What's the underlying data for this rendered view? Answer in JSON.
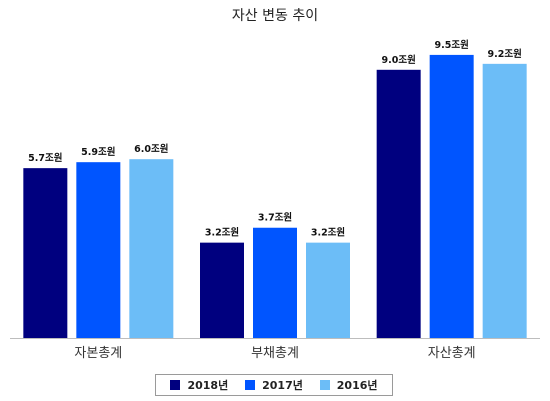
{
  "chart_data": {
    "type": "bar",
    "title": "자산 변동 추이",
    "categories": [
      "자본총계",
      "부채총계",
      "자산총계"
    ],
    "series": [
      {
        "name": "2018년",
        "color": "#00007f",
        "values": [
          5.7,
          3.2,
          9.0
        ],
        "labels": [
          "5.7조원",
          "3.2조원",
          "9.0조원"
        ]
      },
      {
        "name": "2017년",
        "color": "#0055ff",
        "values": [
          5.9,
          3.7,
          9.5
        ],
        "labels": [
          "5.9조원",
          "3.7조원",
          "9.5조원"
        ]
      },
      {
        "name": "2016년",
        "color": "#6cbdf7",
        "values": [
          6.0,
          3.2,
          9.2
        ],
        "labels": [
          "6.0조원",
          "3.2조원",
          "9.2조원"
        ]
      }
    ],
    "ylim": [
      0,
      10
    ],
    "grid": false,
    "legend_position": "bottom"
  }
}
